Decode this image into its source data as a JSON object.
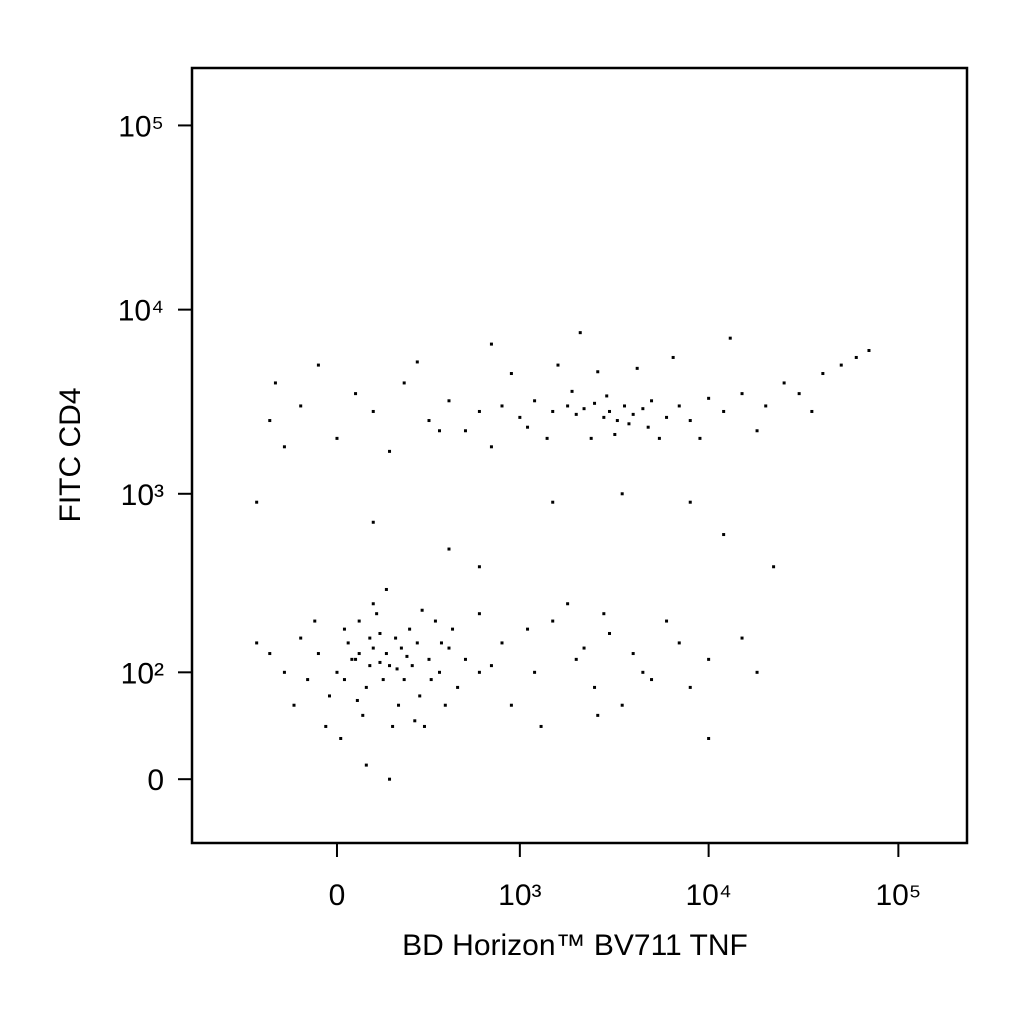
{
  "chart_data": {
    "type": "scatter",
    "x_label": "BD Horizon™ BV711 TNF",
    "y_label": "FITC CD4",
    "xscale": "biexponential",
    "yscale": "biexponential",
    "xlim": [
      -620,
      230000
    ],
    "ylim": [
      -50,
      205000
    ],
    "xticks": [
      0,
      {
        "value": 1000,
        "label": "10³"
      },
      {
        "value": 10000,
        "label": "10⁴"
      },
      {
        "value": 100000,
        "label": "10⁵"
      }
    ],
    "yticks": [
      0,
      {
        "value": 100,
        "label": "10²"
      },
      {
        "value": 1000,
        "label": "10³"
      },
      {
        "value": 10000,
        "label": "10⁴"
      },
      {
        "value": 100000,
        "label": "10⁵"
      }
    ],
    "color": "#000000",
    "x": [
      50,
      100,
      150,
      -50,
      200,
      80,
      120,
      0,
      250,
      300,
      -100,
      60,
      180,
      140,
      90,
      30,
      220,
      -150,
      350,
      400,
      -20,
      70,
      160,
      110,
      260,
      -200,
      20,
      190,
      130,
      40,
      500,
      450,
      -80,
      330,
      280,
      10,
      230,
      170,
      100,
      -250,
      600,
      80,
      150,
      -30,
      380,
      270,
      60,
      120,
      210,
      90,
      -120,
      420,
      20,
      310,
      175,
      55,
      240,
      -60,
      140,
      360,
      800,
      1200,
      1500,
      2000,
      2500,
      3000,
      4000,
      5000,
      6000,
      900,
      1800,
      3500,
      7000,
      10000,
      15000,
      700,
      1100,
      2200,
      2800,
      4500,
      1300,
      2600,
      8000,
      18000,
      600,
      -200,
      -100,
      0,
      50,
      100,
      200,
      300,
      400,
      500,
      600,
      800,
      1000,
      1200,
      1500,
      1800,
      2000,
      2200,
      2500,
      2800,
      3000,
      3300,
      3600,
      4000,
      4500,
      5000,
      6000,
      7000,
      8000,
      10000,
      12000,
      15000,
      20000,
      25000,
      30000,
      40000,
      50000,
      60000,
      70000,
      -150,
      150,
      700,
      1400,
      2400,
      3200,
      5500,
      9000,
      -50,
      250,
      900,
      1600,
      2600,
      4200,
      6500,
      1100,
      1900,
      2900,
      3800,
      4800,
      35000,
      18000,
      350,
      -180,
      700,
      2100,
      13000,
      100,
      400,
      1500,
      3500,
      8000,
      -250,
      600,
      12000,
      22000,
      10000
    ],
    "values": [
      120,
      140,
      110,
      130,
      90,
      80,
      170,
      100,
      150,
      120,
      160,
      200,
      60,
      130,
      110,
      150,
      180,
      100,
      100,
      140,
      70,
      50,
      40,
      220,
      70,
      130,
      180,
      140,
      90,
      120,
      120,
      80,
      90,
      200,
      40,
      30,
      110,
      160,
      250,
      150,
      100,
      10,
      0,
      40,
      60,
      230,
      130,
      115,
      125,
      160,
      60,
      180,
      90,
      90,
      105,
      65,
      45,
      200,
      300,
      150,
      150,
      100,
      200,
      120,
      80,
      170,
      130,
      90,
      200,
      60,
      250,
      60,
      150,
      120,
      160,
      110,
      180,
      140,
      220,
      100,
      40,
      50,
      80,
      100,
      220,
      2500,
      3000,
      2000,
      3500,
      2800,
      4000,
      2500,
      3200,
      2200,
      2800,
      3000,
      2600,
      3200,
      2800,
      3000,
      2700,
      2900,
      3100,
      2600,
      2800,
      2500,
      3000,
      2700,
      2900,
      3200,
      2600,
      3000,
      2500,
      3300,
      2800,
      3500,
      3000,
      4000,
      3500,
      4500,
      5000,
      5500,
      6000,
      1800,
      1700,
      1800,
      2000,
      2000,
      2100,
      2000,
      2000,
      5000,
      5200,
      4500,
      5000,
      4600,
      4800,
      5500,
      2300,
      3600,
      3400,
      2400,
      2300,
      2800,
      2200,
      2200,
      4000,
      6500,
      7500,
      7000,
      700,
      500,
      900,
      1000,
      900,
      900,
      400,
      600,
      400,
      30
    ]
  }
}
